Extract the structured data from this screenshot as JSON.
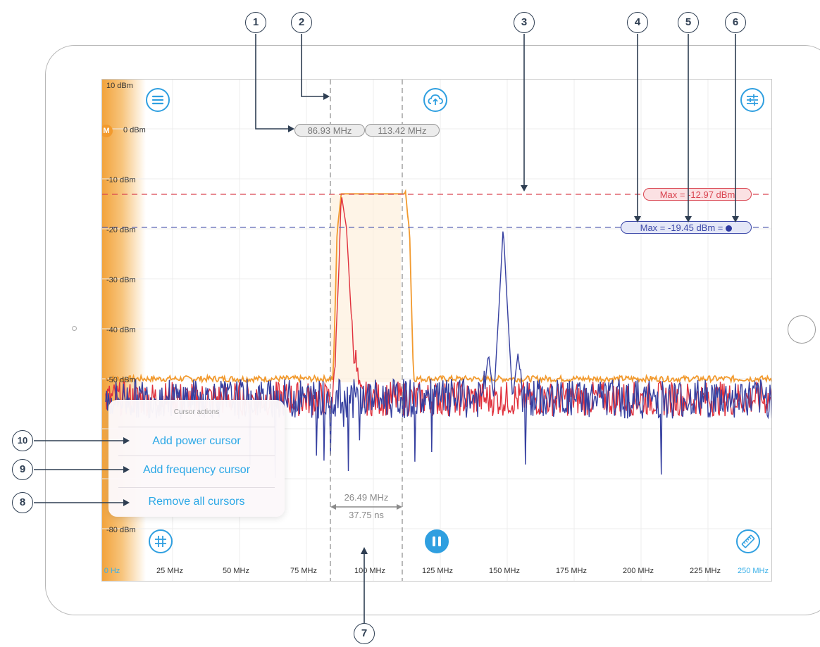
{
  "y_axis": {
    "labels": [
      "10 dBm",
      "0 dBm",
      "-10 dBm",
      "-20 dBm",
      "-30 dBm",
      "-40 dBm",
      "-50 dBm",
      "-80 dBm"
    ],
    "marker_badge": "M"
  },
  "x_axis": {
    "labels": [
      "0 Hz",
      "25 MHz",
      "50 MHz",
      "75 MHz",
      "100 MHz",
      "125 MHz",
      "150 MHz",
      "175 MHz",
      "200 MHz",
      "225 MHz",
      "250 MHz"
    ]
  },
  "frequency_cursors": {
    "left": "86.93 MHz",
    "right": "113.42 MHz",
    "span": "26.49 MHz",
    "period": "37.75 ns"
  },
  "power_cursors": {
    "red": "Max = -12.97 dBm",
    "blue": "Max = -19.45 dBm ="
  },
  "cursor_actions": {
    "title": "Cursor actions",
    "items": [
      "Add power cursor",
      "Add frequency cursor",
      "Remove all cursors"
    ]
  },
  "callouts": [
    "1",
    "2",
    "3",
    "4",
    "5",
    "6",
    "7",
    "8",
    "9",
    "10"
  ],
  "icons": {
    "menu": "menu-icon",
    "cloud": "cloud-upload-icon",
    "settings": "sliders-icon",
    "grid": "grid-icon",
    "pause": "pause-icon",
    "ruler": "ruler-icon"
  },
  "colors": {
    "orange_trace": "#f29a2e",
    "red_trace": "#e0303c",
    "blue_trace": "#3640a0",
    "accent": "#2f9fe0"
  },
  "chart_data": {
    "type": "line",
    "xlim": [
      0,
      250
    ],
    "ylim": [
      -90,
      10
    ],
    "series": [
      {
        "color": "orange",
        "x": [
          0,
          85,
          86.5,
          88,
          112,
          113.5,
          115,
          250
        ],
        "values": [
          -50,
          -50,
          -20,
          -13,
          -13,
          -20,
          -50,
          -50
        ]
      },
      {
        "color": "red",
        "x": [
          0,
          85,
          87,
          88,
          90,
          92,
          95,
          250
        ],
        "values": [
          -54,
          -54,
          -30,
          -13,
          -20,
          -40,
          -54,
          -54
        ]
      },
      {
        "color": "blue",
        "x": [
          0,
          141,
          143,
          145,
          147,
          148.5,
          150,
          152,
          154,
          156,
          250
        ],
        "values": [
          -54,
          -54,
          -45,
          -54,
          -35,
          -19.5,
          -35,
          -54,
          -45,
          -54,
          -54
        ]
      }
    ]
  }
}
